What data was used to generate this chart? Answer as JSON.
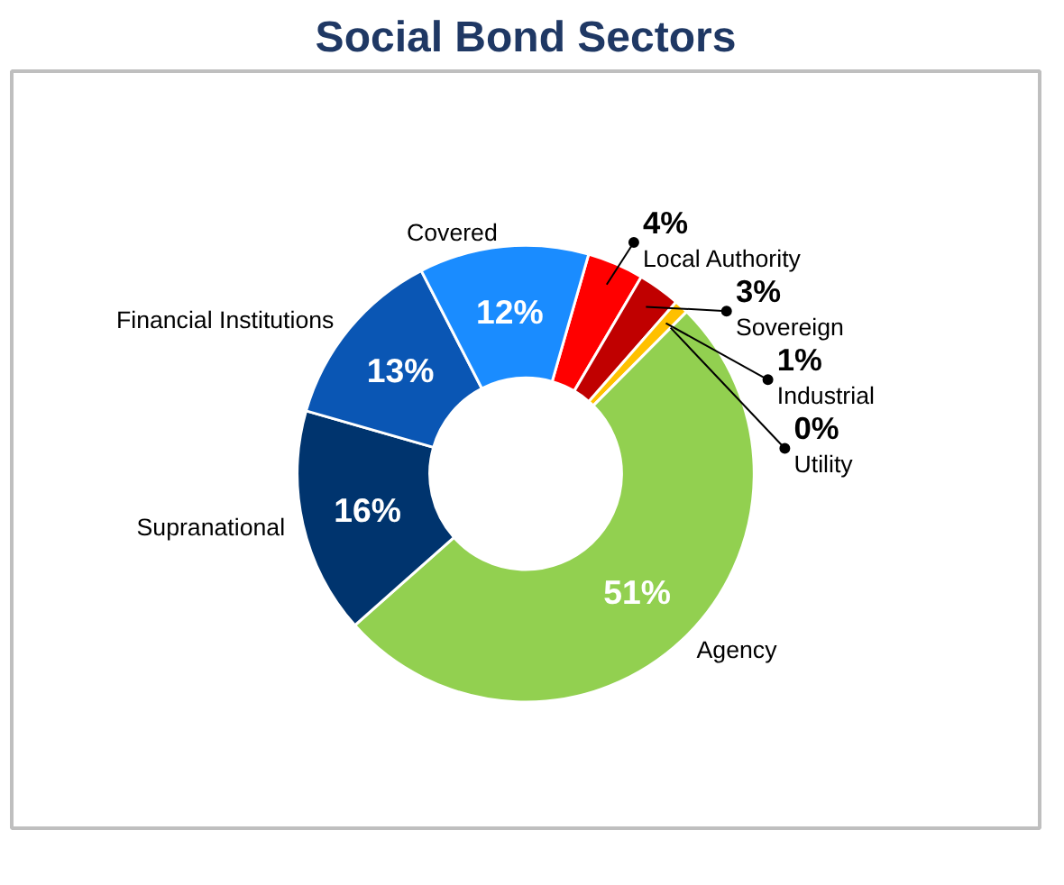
{
  "chart_data": {
    "type": "donut",
    "title": "Social Bond Sectors",
    "categories": [
      "Local Authority",
      "Sovereign",
      "Industrial",
      "Utility",
      "Agency",
      "Supranational",
      "Financial Institutions",
      "Covered"
    ],
    "values": [
      4,
      3,
      1,
      0,
      51,
      16,
      13,
      12
    ],
    "colors": [
      "#ff0000",
      "#c00000",
      "#ffc000",
      "#ffd966",
      "#92d050",
      "#00346e",
      "#0a56b4",
      "#1a8cff"
    ],
    "value_labels": [
      "4%",
      "3%",
      "1%",
      "0%",
      "51%",
      "16%",
      "13%",
      "12%"
    ]
  }
}
